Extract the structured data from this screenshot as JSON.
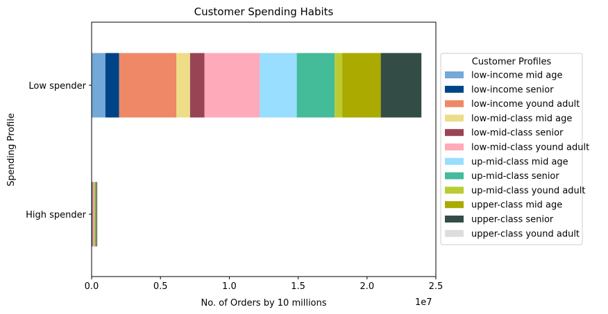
{
  "chart_data": {
    "type": "bar",
    "orientation": "horizontal",
    "stacked": true,
    "title": "Customer Spending Habits",
    "xlabel": "No. of Orders by 10 millions",
    "ylabel": "Spending Profile",
    "x_offset_label": "1e7",
    "xlim": [
      0,
      25000000
    ],
    "x_ticks": [
      0,
      5000000,
      10000000,
      15000000,
      20000000,
      25000000
    ],
    "x_tick_labels": [
      "0.0",
      "0.5",
      "1.0",
      "1.5",
      "2.0",
      "2.5"
    ],
    "categories": [
      "Low spender",
      "High spender"
    ],
    "grid": false,
    "legend": {
      "title": "Customer Profiles",
      "placement": "center-right-outside"
    },
    "series": [
      {
        "name": "low-income mid age",
        "color": "#73a8d8",
        "values": [
          1000000,
          30000
        ]
      },
      {
        "name": "low-income senior",
        "color": "#004488",
        "values": [
          1000000,
          30000
        ]
      },
      {
        "name": "low-income yound adult",
        "color": "#ee8866",
        "values": [
          4150000,
          60000
        ]
      },
      {
        "name": "low-mid-class mid age",
        "color": "#eedd88",
        "values": [
          1000000,
          20000
        ]
      },
      {
        "name": "low-mid-class senior",
        "color": "#994455",
        "values": [
          1050000,
          20000
        ]
      },
      {
        "name": "low-mid-class yound adult",
        "color": "#ffaabb",
        "values": [
          4000000,
          40000
        ]
      },
      {
        "name": "up-mid-class mid age",
        "color": "#99ddff",
        "values": [
          2700000,
          20000
        ]
      },
      {
        "name": "up-mid-class senior",
        "color": "#44bb99",
        "values": [
          2750000,
          20000
        ]
      },
      {
        "name": "up-mid-class yound adult",
        "color": "#bbcc33",
        "values": [
          550000,
          20000
        ]
      },
      {
        "name": "upper-class mid age",
        "color": "#aaaa00",
        "values": [
          2800000,
          70000
        ]
      },
      {
        "name": "upper-class senior",
        "color": "#334c46",
        "values": [
          2950000,
          60000
        ]
      },
      {
        "name": "upper-class yound adult",
        "color": "#dddddd",
        "values": [
          0,
          60000
        ]
      }
    ]
  }
}
